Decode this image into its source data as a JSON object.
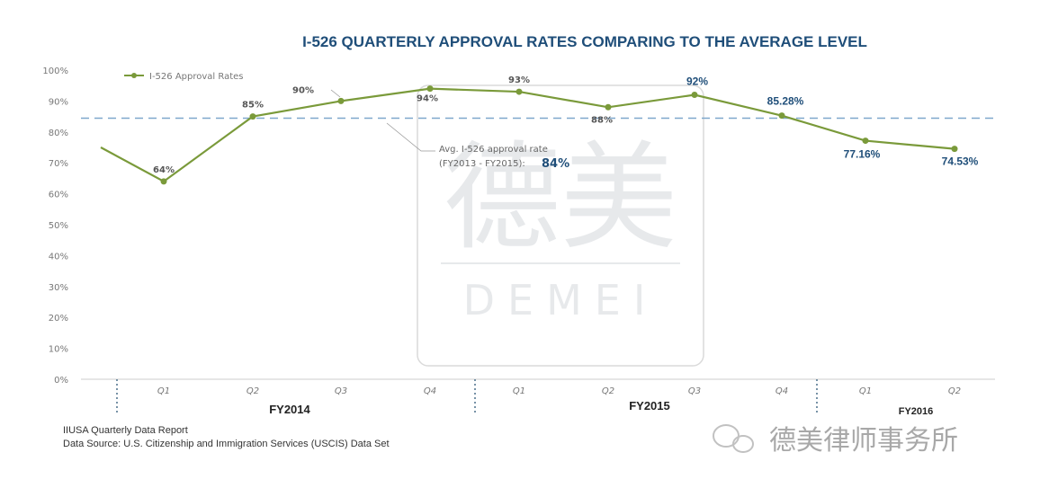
{
  "chart_data": {
    "type": "line",
    "title": "I-526 QUARTERLY APPROVAL RATES COMPARING TO THE AVERAGE LEVEL",
    "ylim": [
      0,
      100
    ],
    "y_ticks": [
      "0%",
      "10%",
      "20%",
      "30%",
      "40%",
      "50%",
      "60%",
      "70%",
      "80%",
      "90%",
      "100%"
    ],
    "categories": [
      "Q1",
      "Q2",
      "Q3",
      "Q4",
      "Q1",
      "Q2",
      "Q3",
      "Q4",
      "Q1",
      "Q2"
    ],
    "fiscal_years": [
      {
        "label": "FY2014",
        "quarters": 4
      },
      {
        "label": "FY2015",
        "quarters": 4
      },
      {
        "label": "FY2016",
        "quarters": 2
      }
    ],
    "series": [
      {
        "name": "I-526 Approval Rates",
        "color": "#7a9a3a",
        "values": [
          64,
          85,
          90,
          94,
          93,
          88,
          92,
          85.28,
          77.16,
          74.53
        ],
        "value_labels": [
          "64%",
          "85%",
          "90%",
          "94%",
          "93%",
          "88%",
          "92%",
          "85.28%",
          "77.16%",
          "74.53%"
        ],
        "left_edge_value": 75
      }
    ],
    "reference_line": {
      "value": 84,
      "color": "#7ea7cc",
      "label_line1": "Avg. I-526 approval rate",
      "label_line2": "(FY2013 - FY2015):",
      "label_value": "84%"
    },
    "grid": false,
    "legend_position": "top-left",
    "sources": [
      "IIUSA Quarterly Data Report",
      "Data Source: U.S. Citizenship and Immigration Services (USCIS) Data Set"
    ]
  },
  "watermark": {
    "chars": "德美",
    "word": "DEMEI",
    "account": "德美律师事务所"
  }
}
